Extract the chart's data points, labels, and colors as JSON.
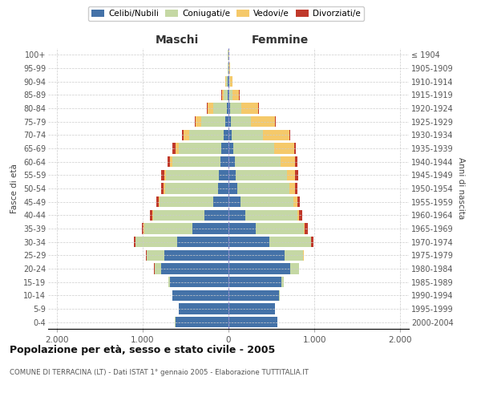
{
  "age_groups": [
    "0-4",
    "5-9",
    "10-14",
    "15-19",
    "20-24",
    "25-29",
    "30-34",
    "35-39",
    "40-44",
    "45-49",
    "50-54",
    "55-59",
    "60-64",
    "65-69",
    "70-74",
    "75-79",
    "80-84",
    "85-89",
    "90-94",
    "95-99",
    "100+"
  ],
  "birth_years": [
    "2000-2004",
    "1995-1999",
    "1990-1994",
    "1985-1989",
    "1980-1984",
    "1975-1979",
    "1970-1974",
    "1965-1969",
    "1960-1964",
    "1955-1959",
    "1950-1954",
    "1945-1949",
    "1940-1944",
    "1935-1939",
    "1930-1934",
    "1925-1929",
    "1920-1924",
    "1915-1919",
    "1910-1914",
    "1905-1909",
    "≤ 1904"
  ],
  "maschi": {
    "celibi": [
      620,
      580,
      650,
      680,
      780,
      750,
      600,
      420,
      280,
      180,
      120,
      110,
      90,
      80,
      60,
      35,
      20,
      8,
      5,
      3,
      2
    ],
    "coniugati": [
      2,
      2,
      5,
      20,
      80,
      200,
      480,
      560,
      600,
      620,
      620,
      620,
      560,
      500,
      400,
      280,
      160,
      50,
      20,
      8,
      3
    ],
    "vedovi": [
      0,
      0,
      0,
      0,
      1,
      2,
      3,
      5,
      8,
      10,
      15,
      20,
      30,
      40,
      60,
      70,
      60,
      20,
      10,
      3,
      1
    ],
    "divorziati": [
      0,
      0,
      0,
      1,
      3,
      5,
      15,
      25,
      30,
      30,
      25,
      30,
      30,
      30,
      25,
      10,
      8,
      5,
      0,
      0,
      0
    ]
  },
  "femmine": {
    "nubili": [
      570,
      540,
      590,
      620,
      720,
      650,
      480,
      320,
      200,
      140,
      100,
      85,
      70,
      55,
      35,
      25,
      15,
      8,
      5,
      3,
      2
    ],
    "coniugate": [
      2,
      3,
      8,
      25,
      100,
      220,
      480,
      560,
      600,
      620,
      610,
      600,
      540,
      480,
      370,
      240,
      130,
      35,
      15,
      5,
      2
    ],
    "vedove": [
      0,
      0,
      0,
      1,
      2,
      3,
      5,
      10,
      20,
      40,
      60,
      90,
      160,
      230,
      300,
      280,
      200,
      80,
      30,
      10,
      3
    ],
    "divorziate": [
      0,
      0,
      0,
      1,
      3,
      8,
      20,
      30,
      35,
      35,
      30,
      35,
      30,
      20,
      15,
      8,
      5,
      3,
      0,
      0,
      0
    ]
  },
  "colors": {
    "celibi": "#4472a8",
    "coniugati": "#c5d8a4",
    "vedovi": "#f5c96a",
    "divorziati": "#c0392b"
  },
  "xlim": 2100,
  "title": "Popolazione per età, sesso e stato civile - 2005",
  "subtitle": "COMUNE DI TERRACINA (LT) - Dati ISTAT 1° gennaio 2005 - Elaborazione TUTTITALIA.IT",
  "ylabel_left": "Fasce di età",
  "ylabel_right": "Anni di nascita",
  "maschi_label": "Maschi",
  "femmine_label": "Femmine",
  "legend_labels": [
    "Celibi/Nubili",
    "Coniugati/e",
    "Vedovi/e",
    "Divorziati/e"
  ],
  "xtick_labels": [
    "2.000",
    "1.000",
    "0",
    "1.000",
    "2.000"
  ]
}
